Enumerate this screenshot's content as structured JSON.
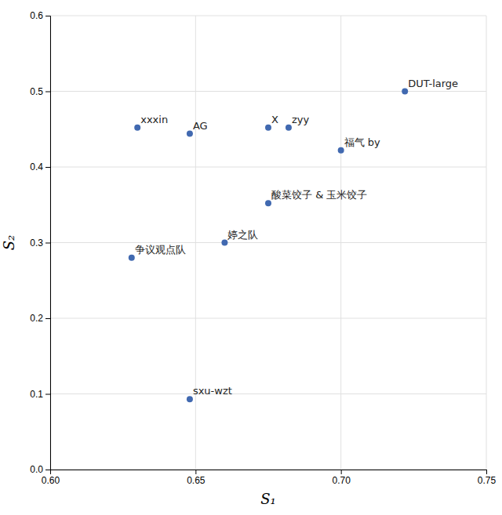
{
  "chart_data": {
    "type": "scatter",
    "x_label": "S₁",
    "y_label": "S₂",
    "x": [
      0.722,
      0.63,
      0.648,
      0.675,
      0.682,
      0.7,
      0.675,
      0.66,
      0.628,
      0.648
    ],
    "values": [
      0.5,
      0.452,
      0.444,
      0.452,
      0.452,
      0.422,
      0.352,
      0.3,
      0.28,
      0.093
    ],
    "labels": [
      "DUT-large",
      "xxxin",
      "AG",
      "X",
      "zyy",
      "福气 by",
      "酸菜饺子 & 玉米饺子",
      "婷之队",
      "争议观点队",
      "sxu-wzt"
    ],
    "color": "#4169b0",
    "xlim": [
      0.6,
      0.75
    ],
    "ylim": [
      0,
      0.6
    ],
    "xticks": [
      {
        "value": 0.6,
        "label": "0.60"
      },
      0.65,
      {
        "value": 0.7,
        "label": "0.70"
      },
      0.75
    ],
    "yticks": [
      {
        "value": 0,
        "label": "0.0"
      },
      0.1,
      0.2,
      0.3,
      0.4,
      0.5,
      0.6
    ],
    "grid": true
  }
}
